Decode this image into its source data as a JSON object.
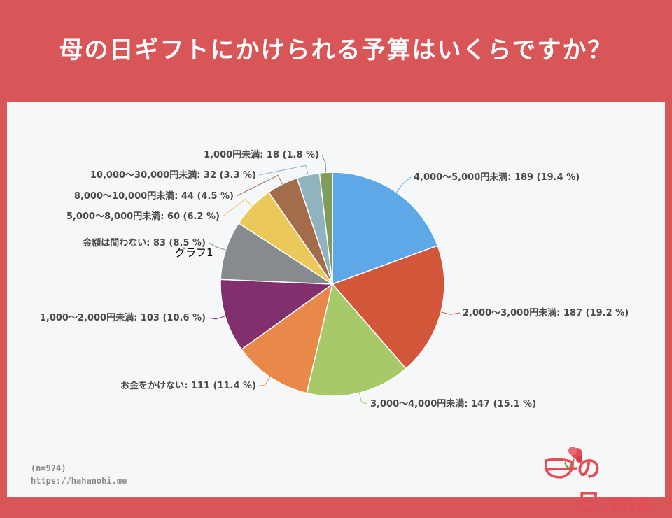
{
  "title": "母の日ギフトにかけられる予算はいくらですか？",
  "overlay_label": "グラフ1",
  "sample_size": "(n=974)",
  "source_url": "https://hahanohi.me",
  "logo_text": "の日.me",
  "chart_data": {
    "type": "pie",
    "title": "",
    "slices": [
      {
        "label": "4,000～5,000円未満: 189 (19.4 %)",
        "value": 189,
        "color": "#5ea8e8"
      },
      {
        "label": "2,000～3,000円未満: 187 (19.2 %)",
        "value": 187,
        "color": "#d2563a"
      },
      {
        "label": "3,000～4,000円未満: 147 (15.1 %)",
        "value": 147,
        "color": "#a8c96a"
      },
      {
        "label": "お金をかけない: 111 (11.4 %)",
        "value": 111,
        "color": "#e8894a"
      },
      {
        "label": "1,000～2,000円未満: 103 (10.6 %)",
        "value": 103,
        "color": "#822f6e"
      },
      {
        "label": "金額は問わない: 83 (8.5 %)",
        "value": 83,
        "color": "#868b8f"
      },
      {
        "label": "5,000～8,000円未満: 60 (6.2 %)",
        "value": 60,
        "color": "#ebc85a"
      },
      {
        "label": "8,000～10,000円未満: 44 (4.5 %)",
        "value": 44,
        "color": "#a36d4c"
      },
      {
        "label": "10,000～30,000円未満: 32 (3.3 %)",
        "value": 32,
        "color": "#8fb4c0"
      },
      {
        "label": "1,000円未満: 18 (1.8 %)",
        "value": 18,
        "color": "#7f9c5a"
      }
    ]
  }
}
